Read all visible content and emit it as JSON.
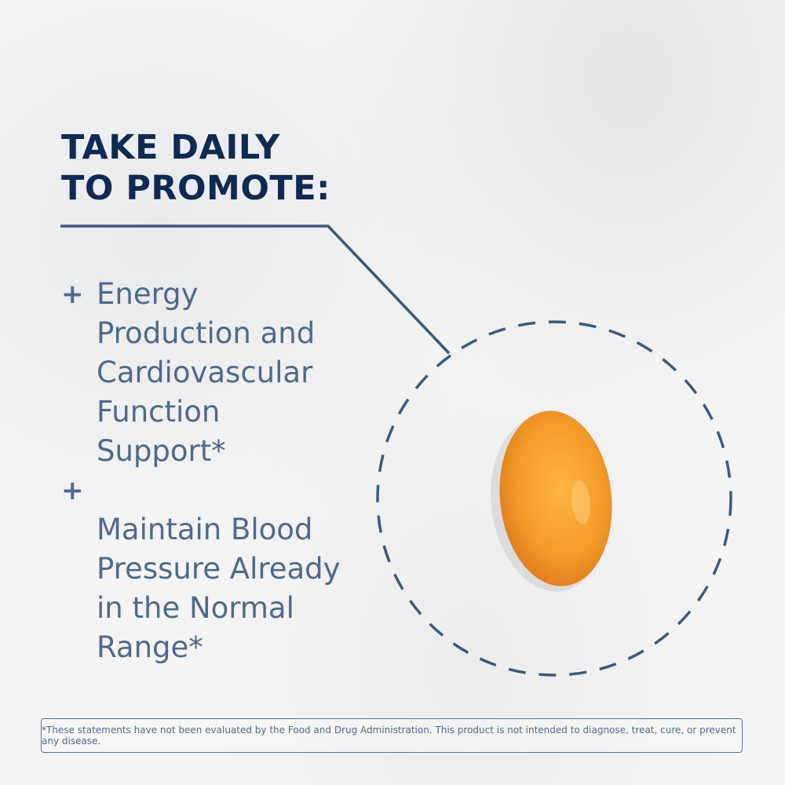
{
  "heading": {
    "line1": "TAKE DAILY",
    "line2": "TO PROMOTE:"
  },
  "benefits": [
    {
      "icon": "plus-icon",
      "lines": [
        "Energy",
        "Production and",
        "Cardiovascular",
        "Function",
        "Support*"
      ]
    },
    {
      "icon": "plus-icon",
      "lines": [
        "Maintain Blood",
        "Pressure Already",
        "in the Normal",
        "Range*"
      ]
    }
  ],
  "disclaimer": "*These statements have not been evaluated by the Food and Drug Administration. This product is not intended to diagnose, treat, cure, or prevent any disease.",
  "colors": {
    "heading": "#0f2a52",
    "body": "#4d6a8c",
    "line": "#3d5a7d",
    "softgel": "#f0962a"
  }
}
